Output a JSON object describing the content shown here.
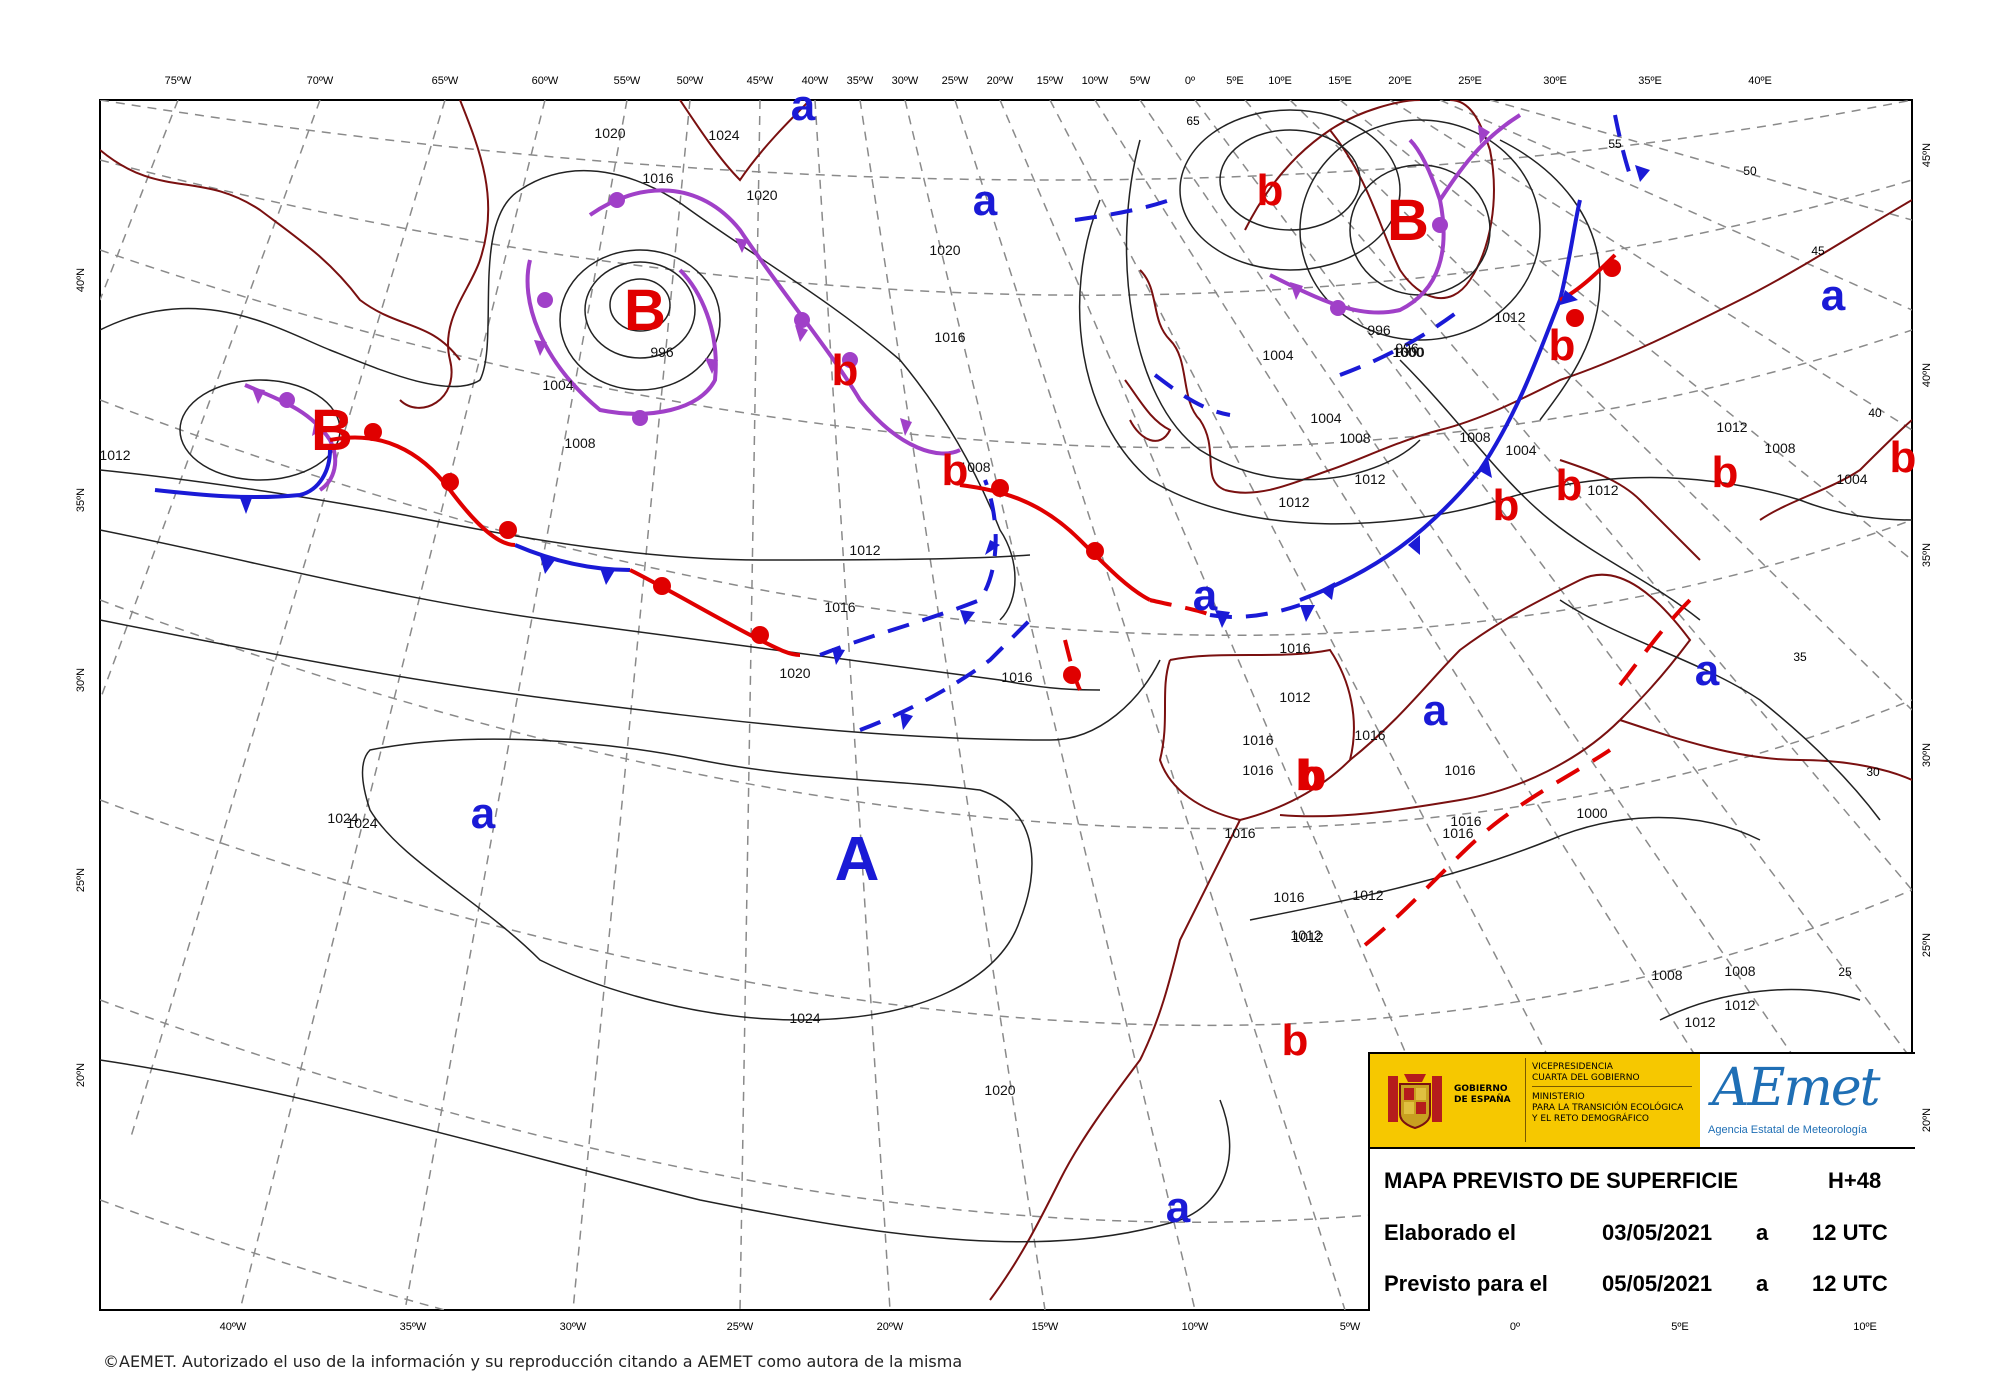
{
  "map": {
    "top_lon_labels": [
      "75ºW",
      "70ºW",
      "65ºW",
      "60ºW",
      "55ºW",
      "50ºW",
      "45ºW",
      "40ºW",
      "35ºW",
      "30ºW",
      "25ºW",
      "20ºW",
      "15ºW",
      "10ºW",
      "5ºW",
      "0º",
      "5ºE",
      "10ºE",
      "15ºE",
      "20ºE",
      "25ºE",
      "30ºE",
      "35ºE",
      "40ºE"
    ],
    "bottom_lon_labels": [
      "40ºW",
      "35ºW",
      "30ºW",
      "25ºW",
      "20ºW",
      "15ºW",
      "10ºW",
      "5ºW",
      "0º",
      "5ºE",
      "10ºE"
    ],
    "left_lat_labels": [
      "40ºN",
      "35ºN",
      "30ºN",
      "25ºN",
      "20ºN"
    ],
    "right_lat_labels": [
      "45ºN",
      "40ºN",
      "35ºN",
      "30ºN",
      "25ºN",
      "20ºN"
    ],
    "inner_lat_labels": [
      "65",
      "55",
      "50",
      "45",
      "40",
      "35",
      "30",
      "25"
    ],
    "isobar_labels": [
      "1020",
      "1024",
      "1020",
      "1016",
      "1020",
      "1016",
      "1012",
      "1008",
      "1004",
      "1000",
      "996",
      "1004",
      "1008",
      "1012",
      "1016",
      "1020",
      "1024",
      "1024",
      "1024",
      "1016",
      "1012",
      "1008",
      "1004",
      "1000",
      "996",
      "1004",
      "1008",
      "1012",
      "1016",
      "1012",
      "1016",
      "1016",
      "1016",
      "1016",
      "1016",
      "1016",
      "1016",
      "1016",
      "1012",
      "1012",
      "1012",
      "1012",
      "1012",
      "1012",
      "1004",
      "1008",
      "1008",
      "1008",
      "1012",
      "1012",
      "1000",
      "996",
      "1020"
    ],
    "pressure_centers": [
      {
        "label": "a",
        "color": "#1a1ad6"
      },
      {
        "label": "a",
        "color": "#1a1ad6"
      },
      {
        "label": "b",
        "color": "#e00000"
      },
      {
        "label": "B",
        "color": "#e00000"
      },
      {
        "label": "B",
        "color": "#e00000"
      },
      {
        "label": "b",
        "color": "#e00000"
      },
      {
        "label": "B",
        "color": "#e00000"
      },
      {
        "label": "b",
        "color": "#e00000"
      },
      {
        "label": "a",
        "color": "#1a1ad6"
      },
      {
        "label": "a",
        "color": "#1a1ad6"
      },
      {
        "label": "b",
        "color": "#e00000"
      },
      {
        "label": "b",
        "color": "#e00000"
      },
      {
        "label": "a",
        "color": "#1a1ad6"
      },
      {
        "label": "b",
        "color": "#e00000"
      },
      {
        "label": "a",
        "color": "#1a1ad6"
      },
      {
        "label": "a",
        "color": "#1a1ad6"
      },
      {
        "label": "A",
        "color": "#1a1ad6"
      },
      {
        "label": "b",
        "color": "#e00000"
      },
      {
        "label": "b",
        "color": "#e00000"
      },
      {
        "label": "a",
        "color": "#1a1ad6"
      },
      {
        "label": "b",
        "color": "#e00000"
      },
      {
        "label": "b",
        "color": "#e00000"
      },
      {
        "label": "b",
        "color": "#e00000"
      }
    ],
    "colors": {
      "cold_front": "#1a1ad6",
      "warm_front": "#e00000",
      "occluded_front": "#a040c8",
      "coast": "#7a1010",
      "isobar": "#000000",
      "grid": "#888888"
    }
  },
  "legend": {
    "gov_line1": "GOBIERNO",
    "gov_line2": "DE ESPAÑA",
    "vice_line1": "VICEPRESIDENCIA",
    "vice_line2": "CUARTA DEL GOBIERNO",
    "min_line1": "MINISTERIO",
    "min_line2": "PARA LA TRANSICIÓN ECOLÓGICA",
    "min_line3": "Y EL RETO DEMOGRÁFICO",
    "logo_text": "AEmet",
    "logo_sub": "Agencia Estatal de Meteorología",
    "title": "MAPA PREVISTO DE SUPERFICIE",
    "lead_time": "H+48",
    "made_label": "Elaborado el",
    "made_date": "03/05/2021",
    "made_at": "a",
    "made_time": "12 UTC",
    "valid_label": "Previsto para el",
    "valid_date": "05/05/2021",
    "valid_at": "a",
    "valid_time": "12 UTC"
  },
  "footer": "©AEMET. Autorizado el uso de la información y su reproducción citando a AEMET como autora de la misma"
}
